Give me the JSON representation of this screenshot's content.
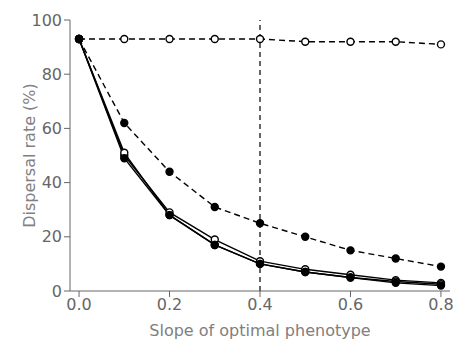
{
  "chart_data": {
    "type": "line",
    "xlabel": "Slope of optimal phenotype",
    "ylabel": "Dispersal rate (%)",
    "x": [
      0.0,
      0.1,
      0.2,
      0.3,
      0.4,
      0.5,
      0.6,
      0.7,
      0.8
    ],
    "series": [
      {
        "color": "black",
        "line_style": "dashed",
        "marker": "open_circle",
        "values": [
          93,
          93,
          93,
          93,
          93,
          92,
          92,
          92,
          91
        ]
      },
      {
        "color": "black",
        "line_style": "dashed",
        "marker": "circle",
        "values": [
          93,
          62,
          44,
          31,
          25,
          20,
          15,
          12,
          9
        ]
      },
      {
        "color": "black",
        "line_style": "solid",
        "marker": "open_circle",
        "values": [
          93,
          50,
          29,
          19,
          11,
          8,
          6,
          4,
          3
        ]
      },
      {
        "color": "black",
        "line_style": "solid",
        "marker": "open_circle",
        "values": [
          93,
          51,
          28,
          17,
          10,
          7,
          5,
          3.5,
          2.5
        ]
      },
      {
        "color": "black",
        "line_style": "solid",
        "marker": "circle",
        "values": [
          93,
          49,
          28,
          17,
          10,
          7,
          5,
          3,
          2
        ]
      }
    ],
    "xlim": [
      -0.02,
      0.82
    ],
    "ylim": [
      0,
      100
    ],
    "xticks": [
      {
        "value": 0,
        "label": "0.0"
      },
      0.2,
      0.4,
      0.6,
      0.8
    ],
    "yticks": [
      0,
      20,
      40,
      60,
      80,
      100
    ],
    "vline": 0.4,
    "grid": false
  }
}
